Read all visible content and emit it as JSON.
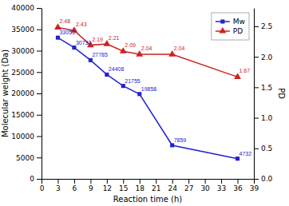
{
  "chart_data": {
    "type": "line",
    "x": [
      3,
      6,
      9,
      12,
      15,
      18,
      24,
      36
    ],
    "xlabel": "Reaction time (h)",
    "ylabel": "Molecular weight (Da)",
    "y2label": "PD",
    "xlim": [
      0,
      39
    ],
    "xticks": [
      0,
      3,
      6,
      9,
      12,
      15,
      18,
      21,
      24,
      27,
      30,
      33,
      36,
      39
    ],
    "ylim": [
      0,
      40000
    ],
    "yticks": [
      0,
      5000,
      10000,
      15000,
      20000,
      25000,
      30000,
      35000,
      40000
    ],
    "y2lim": [
      0.0,
      2.8
    ],
    "y2ticks": [
      {
        "value": 0.0,
        "label": "0.0"
      },
      0.5,
      {
        "value": 1.0,
        "label": "1.0"
      },
      1.5,
      {
        "value": 2.0,
        "label": "2.0"
      },
      2.5
    ],
    "legend": "upper right",
    "data_labels": true,
    "series": [
      {
        "name": "Mw",
        "color": "#2222cc",
        "marker": "square",
        "values": [
          33053,
          30732,
          27785,
          24408,
          21755,
          19858,
          7859,
          4732
        ]
      },
      {
        "name": "PD",
        "color": "#cc2222",
        "marker": "triangle",
        "axis": "y2",
        "values": [
          2.48,
          2.43,
          2.19,
          2.21,
          2.09,
          2.04,
          2.04,
          1.67
        ]
      }
    ]
  }
}
